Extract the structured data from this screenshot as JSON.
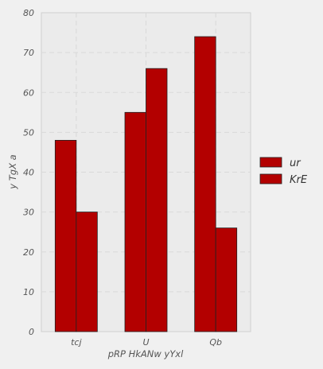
{
  "chart_data": {
    "type": "bar",
    "categories": [
      "tcj",
      "U",
      "Qb"
    ],
    "series": [
      {
        "name": "ur",
        "values": [
          48,
          55,
          74
        ],
        "color": "#b30000"
      },
      {
        "name": "KrE",
        "values": [
          30,
          66,
          26
        ],
        "color": "#b30000"
      }
    ],
    "xlabel": "pRP HkANw yYxl",
    "ylabel": "y TgX a",
    "ylim": [
      0,
      80
    ],
    "yticks": [
      0,
      10,
      20,
      30,
      40,
      50,
      60,
      70,
      80
    ],
    "grid": true,
    "legend": "right",
    "colors": {
      "background": "#f0f0f0",
      "plot_background": "#ebebeb",
      "grid": "#d9d9d9",
      "bar_edge": "#222222"
    }
  }
}
